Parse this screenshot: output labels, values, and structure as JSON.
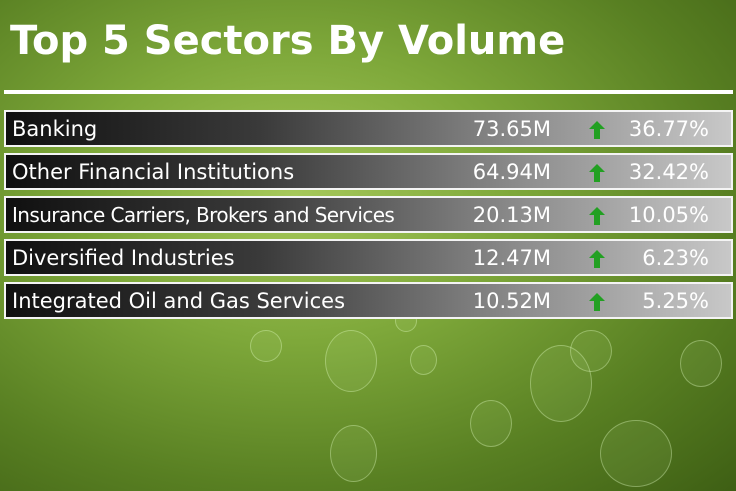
{
  "title": "Top 5 Sectors By Volume",
  "accent_color": "#22a022",
  "rows": [
    {
      "sector": "Banking",
      "volume": "73.65M",
      "trend_icon": "arrow-up-icon",
      "share": "36.77%"
    },
    {
      "sector": "Other Financial Institutions",
      "volume": "64.94M",
      "trend_icon": "arrow-up-icon",
      "share": "32.42%"
    },
    {
      "sector": "Insurance Carriers, Brokers and Services",
      "volume": "20.13M",
      "trend_icon": "arrow-up-icon",
      "share": "10.05%"
    },
    {
      "sector": "Diversified Industries",
      "volume": "12.47M",
      "trend_icon": "arrow-up-icon",
      "share": "6.23%"
    },
    {
      "sector": "Integrated Oil and Gas Services",
      "volume": "10.52M",
      "trend_icon": "arrow-up-icon",
      "share": "5.25%"
    }
  ]
}
